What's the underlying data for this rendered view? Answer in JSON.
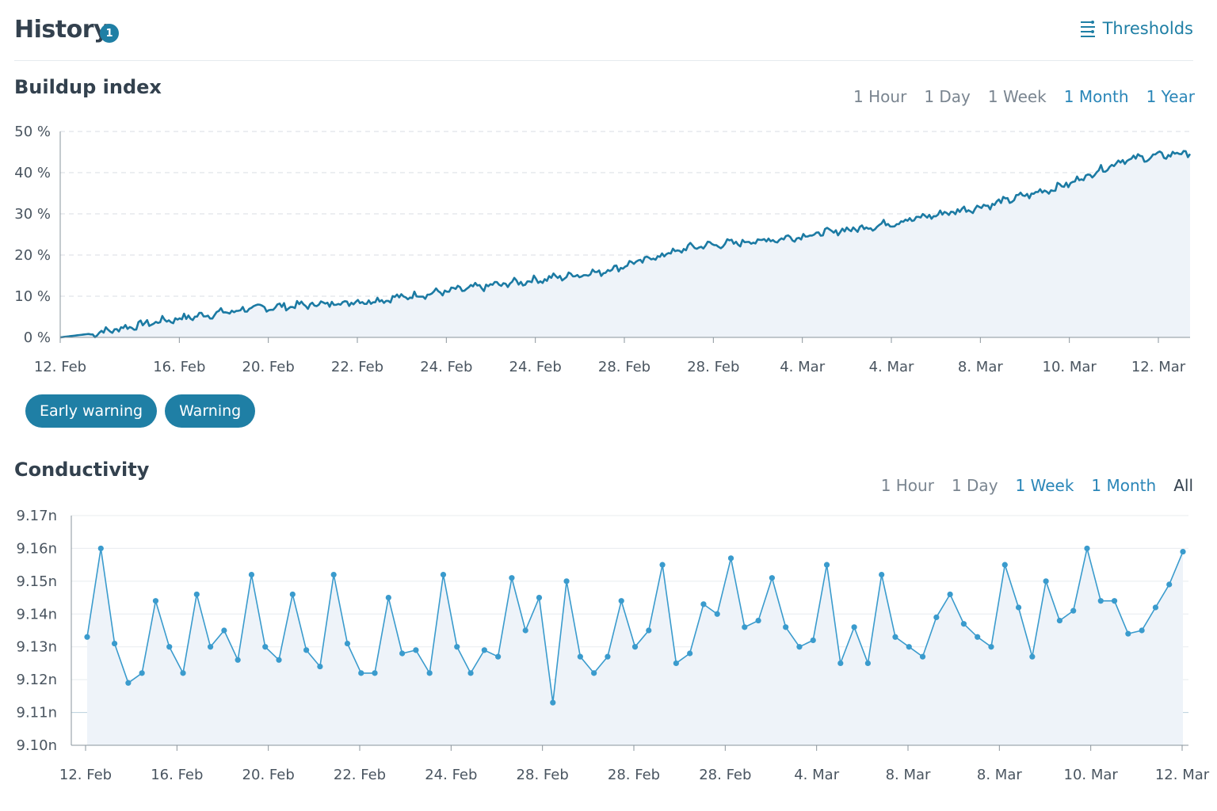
{
  "header": {
    "title": "History",
    "badge": "1",
    "thresholds_label": "Thresholds"
  },
  "buildup": {
    "title": "Buildup index",
    "ranges": [
      "1 Hour",
      "1 Day",
      "1 Week",
      "1 Month",
      "1 Year"
    ],
    "active_ranges": [
      3,
      4
    ]
  },
  "legend_pills": [
    "Early warning",
    "Warning"
  ],
  "conductivity": {
    "title": "Conductivity",
    "ranges": [
      "1 Hour",
      "1 Day",
      "1 Week",
      "1 Month",
      "All"
    ],
    "active_ranges": [
      2,
      3
    ],
    "dark_ranges": [
      4
    ]
  },
  "colors": {
    "accent": "#1f7fa5",
    "line_buildup": "#1b7aa3",
    "line_conductivity": "#3a9bcd",
    "area_fill": "#eef3f9"
  },
  "chart_data": [
    {
      "type": "area",
      "title": "Buildup index",
      "ylim": [
        0,
        50
      ],
      "y_ticks": [
        "0 %",
        "10 %",
        "20 %",
        "30 %",
        "40 %",
        "50 %"
      ],
      "x_tick_labels": [
        "12. Feb",
        "16. Feb",
        "20. Feb",
        "22. Feb",
        "24. Feb",
        "24. Feb",
        "28. Feb",
        "28. Feb",
        "4. Mar",
        "4. Mar",
        "8. Mar",
        "10. Mar",
        "12. Mar"
      ],
      "x_range": [
        "12. Feb",
        "12. Mar"
      ],
      "grid": "horizontal dashed",
      "trend_keypoints": [
        {
          "x": 0.0,
          "y": 0.0
        },
        {
          "x": 0.03,
          "y": 1.0
        },
        {
          "x": 0.09,
          "y": 4.0
        },
        {
          "x": 0.17,
          "y": 7.0
        },
        {
          "x": 0.28,
          "y": 9.0
        },
        {
          "x": 0.38,
          "y": 12.5
        },
        {
          "x": 0.48,
          "y": 16.0
        },
        {
          "x": 0.56,
          "y": 22.0
        },
        {
          "x": 0.64,
          "y": 24.0
        },
        {
          "x": 0.72,
          "y": 27.0
        },
        {
          "x": 0.82,
          "y": 32.0
        },
        {
          "x": 0.89,
          "y": 37.0
        },
        {
          "x": 0.94,
          "y": 43.0
        },
        {
          "x": 1.0,
          "y": 45.0
        }
      ]
    },
    {
      "type": "line",
      "title": "Conductivity",
      "ylim": [
        9.1,
        9.17
      ],
      "y_ticks": [
        "9.10n",
        "9.11n",
        "9.12n",
        "9.13n",
        "9.14n",
        "9.15n",
        "9.16n",
        "9.17n"
      ],
      "x_tick_labels": [
        "12. Feb",
        "16. Feb",
        "20. Feb",
        "22. Feb",
        "24. Feb",
        "28. Feb",
        "28. Feb",
        "28. Feb",
        "4. Mar",
        "8. Mar",
        "8. Mar",
        "10. Mar",
        "12. Mar"
      ],
      "x_range": [
        "12. Feb",
        "12. Mar"
      ],
      "grid": "horizontal",
      "values": [
        9.133,
        9.16,
        9.131,
        9.119,
        9.122,
        9.144,
        9.13,
        9.122,
        9.146,
        9.13,
        9.135,
        9.126,
        9.152,
        9.13,
        9.126,
        9.146,
        9.129,
        9.124,
        9.152,
        9.131,
        9.122,
        9.122,
        9.145,
        9.128,
        9.129,
        9.122,
        9.152,
        9.13,
        9.122,
        9.129,
        9.127,
        9.151,
        9.135,
        9.145,
        9.113,
        9.15,
        9.127,
        9.122,
        9.127,
        9.144,
        9.13,
        9.135,
        9.155,
        9.125,
        9.128,
        9.143,
        9.14,
        9.157,
        9.136,
        9.138,
        9.151,
        9.136,
        9.13,
        9.132,
        9.155,
        9.125,
        9.136,
        9.125,
        9.152,
        9.133,
        9.13,
        9.127,
        9.139,
        9.146,
        9.137,
        9.133,
        9.13,
        9.155,
        9.142,
        9.127,
        9.15,
        9.138,
        9.141,
        9.16,
        9.144,
        9.144,
        9.134,
        9.135,
        9.142,
        9.149,
        9.159
      ]
    }
  ]
}
